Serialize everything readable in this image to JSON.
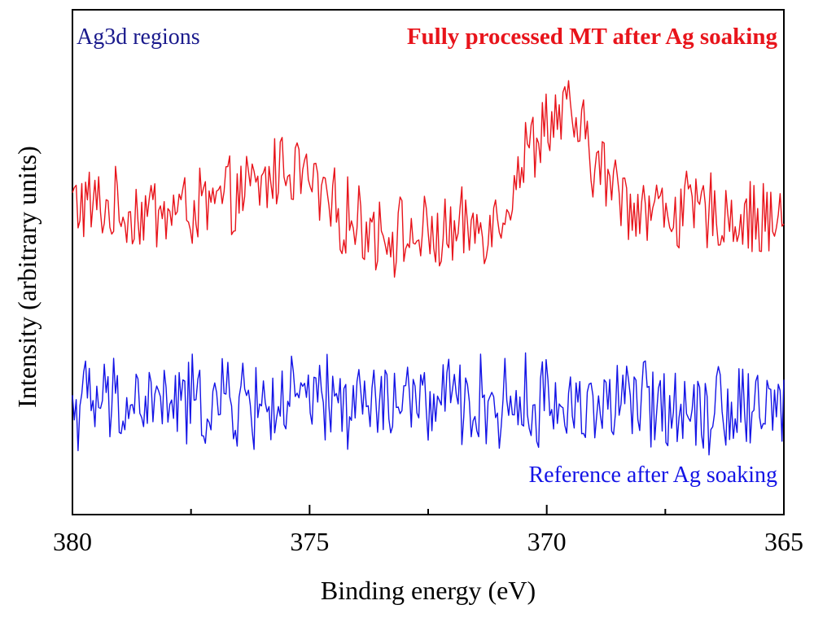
{
  "chart_data": {
    "type": "line",
    "title": "",
    "region_label": "Ag3d regions",
    "xlabel": "Binding energy (eV)",
    "ylabel": "Intensity (arbitrary units)",
    "xlim": [
      380,
      365
    ],
    "x_reversed": true,
    "ylim": [
      0,
      100
    ],
    "x_ticks": [
      380,
      375,
      370,
      365
    ],
    "x_tick_labels": [
      "380",
      "375",
      "370",
      "365"
    ],
    "minor_tick_step": 2.5,
    "y_ticks_shown": false,
    "grid": false,
    "series": [
      {
        "name": "Fully processed MT after Ag soaking",
        "label": "Fully processed MT after Ag soaking",
        "color": "#e8141b",
        "label_color": "#e8141b",
        "x_points": [
          380,
          379,
          378,
          377,
          376,
          375.5,
          375,
          374.5,
          374,
          373,
          372,
          371,
          370.5,
          370,
          369.5,
          369,
          368.5,
          368,
          367,
          366,
          365
        ],
        "y_points": [
          62,
          60,
          60,
          61,
          65,
          70,
          66,
          60,
          58,
          55,
          55,
          59,
          70,
          78,
          79,
          70,
          64,
          61,
          60,
          59,
          58
        ],
        "noise_amplitude": 7
      },
      {
        "name": "Reference after Ag soaking",
        "label": "Reference after Ag soaking",
        "color": "#1414e6",
        "label_color": "#1414e6",
        "x_points": [
          380,
          365
        ],
        "y_points": [
          22,
          22
        ],
        "noise_amplitude": 8
      }
    ]
  },
  "colors": {
    "region_label": "#1a1a8c",
    "axis": "#000000",
    "background": "#ffffff"
  }
}
